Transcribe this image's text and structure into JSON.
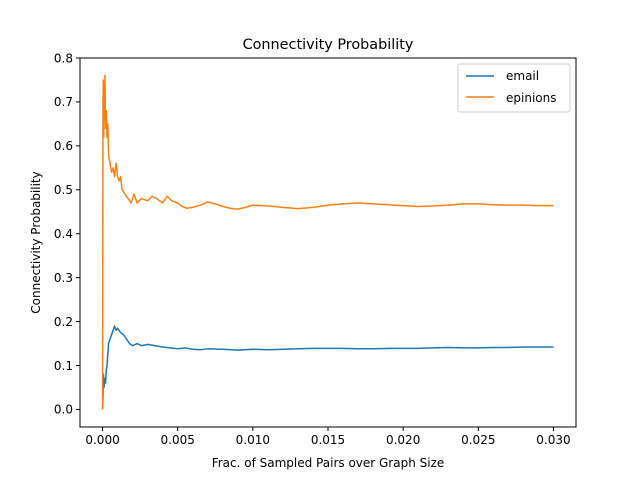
{
  "chart_data": {
    "type": "line",
    "title": "Connectivity Probability",
    "xlabel": "Frac. of Sampled Pairs over Graph Size",
    "ylabel": "Connectivity Probability",
    "xlim": [
      -0.0015,
      0.0315
    ],
    "ylim": [
      -0.04,
      0.8
    ],
    "x_ticks": [
      0.0,
      0.005,
      0.01,
      0.015,
      0.02,
      0.025,
      0.03
    ],
    "x_tick_labels": [
      "0.000",
      "0.005",
      "0.010",
      "0.015",
      "0.020",
      "0.025",
      "0.030"
    ],
    "y_ticks": [
      0.0,
      0.1,
      0.2,
      0.3,
      0.4,
      0.5,
      0.6,
      0.7,
      0.8
    ],
    "y_tick_labels": [
      "0.0",
      "0.1",
      "0.2",
      "0.3",
      "0.4",
      "0.5",
      "0.6",
      "0.7",
      "0.8"
    ],
    "grid": false,
    "legend_position": "top-right",
    "series": [
      {
        "name": "email",
        "color": "#1f77b4",
        "x": [
          0.0,
          3e-05,
          6e-05,
          0.0001,
          0.00015,
          0.0002,
          0.00025,
          0.0003,
          0.0004,
          0.0005,
          0.0006,
          0.0007,
          0.0008,
          0.0009,
          0.001,
          0.0012,
          0.0014,
          0.0016,
          0.0018,
          0.002,
          0.0023,
          0.0026,
          0.003,
          0.0035,
          0.004,
          0.0045,
          0.005,
          0.0055,
          0.006,
          0.0065,
          0.007,
          0.008,
          0.009,
          0.01,
          0.011,
          0.012,
          0.013,
          0.014,
          0.015,
          0.016,
          0.017,
          0.018,
          0.019,
          0.02,
          0.021,
          0.022,
          0.023,
          0.024,
          0.025,
          0.026,
          0.027,
          0.028,
          0.029,
          0.03
        ],
        "y": [
          0.0,
          0.03,
          0.08,
          0.05,
          0.07,
          0.06,
          0.09,
          0.1,
          0.15,
          0.16,
          0.17,
          0.18,
          0.19,
          0.18,
          0.185,
          0.175,
          0.17,
          0.16,
          0.15,
          0.145,
          0.15,
          0.145,
          0.148,
          0.145,
          0.142,
          0.14,
          0.138,
          0.14,
          0.137,
          0.136,
          0.138,
          0.137,
          0.135,
          0.137,
          0.136,
          0.137,
          0.138,
          0.139,
          0.139,
          0.139,
          0.138,
          0.138,
          0.139,
          0.139,
          0.139,
          0.14,
          0.141,
          0.14,
          0.14,
          0.141,
          0.141,
          0.142,
          0.142,
          0.142
        ]
      },
      {
        "name": "epinions",
        "color": "#ff7f0e",
        "x": [
          0.0,
          3e-05,
          5e-05,
          8e-05,
          0.0001,
          0.00013,
          0.00016,
          0.0002,
          0.00025,
          0.0003,
          0.00035,
          0.0004,
          0.0005,
          0.0006,
          0.0007,
          0.0008,
          0.0009,
          0.001,
          0.0011,
          0.0012,
          0.0013,
          0.0015,
          0.0017,
          0.0019,
          0.0021,
          0.0023,
          0.0026,
          0.003,
          0.0033,
          0.0036,
          0.004,
          0.0043,
          0.0046,
          0.005,
          0.0053,
          0.0056,
          0.006,
          0.0065,
          0.007,
          0.0075,
          0.008,
          0.0085,
          0.009,
          0.0095,
          0.01,
          0.011,
          0.012,
          0.013,
          0.014,
          0.015,
          0.016,
          0.017,
          0.018,
          0.019,
          0.02,
          0.021,
          0.022,
          0.023,
          0.024,
          0.025,
          0.026,
          0.027,
          0.028,
          0.029,
          0.03
        ],
        "y": [
          0.0,
          0.7,
          0.75,
          0.62,
          0.73,
          0.66,
          0.76,
          0.64,
          0.68,
          0.62,
          0.65,
          0.58,
          0.56,
          0.54,
          0.55,
          0.53,
          0.56,
          0.53,
          0.52,
          0.53,
          0.5,
          0.49,
          0.48,
          0.47,
          0.49,
          0.47,
          0.48,
          0.475,
          0.485,
          0.48,
          0.47,
          0.485,
          0.475,
          0.47,
          0.462,
          0.458,
          0.46,
          0.465,
          0.472,
          0.468,
          0.462,
          0.458,
          0.456,
          0.46,
          0.465,
          0.463,
          0.46,
          0.457,
          0.46,
          0.465,
          0.468,
          0.47,
          0.468,
          0.466,
          0.464,
          0.462,
          0.463,
          0.465,
          0.468,
          0.468,
          0.466,
          0.465,
          0.465,
          0.464,
          0.464
        ]
      }
    ]
  }
}
